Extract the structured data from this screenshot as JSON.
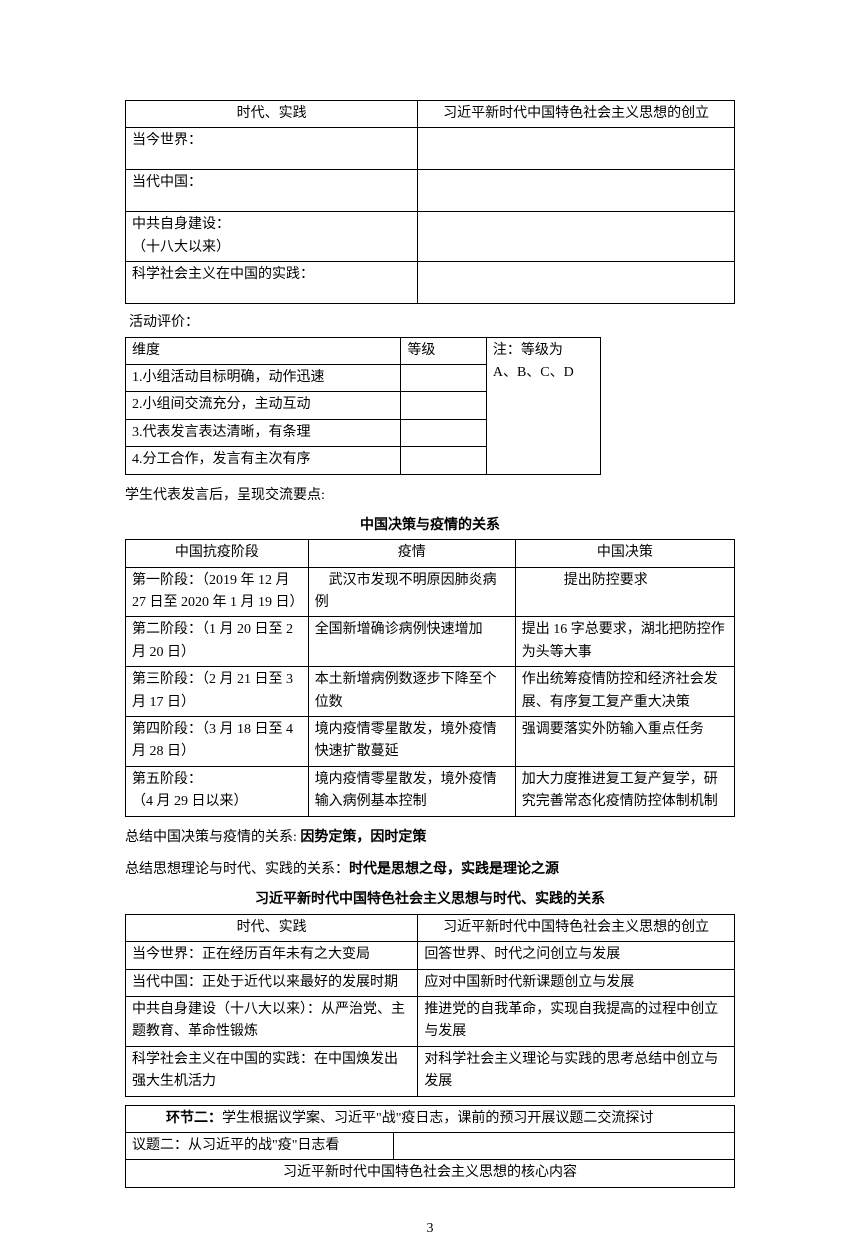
{
  "table1": {
    "header_left": "时代、实践",
    "header_right": "习近平新时代中国特色社会主义思想的创立",
    "rows": [
      {
        "left": "当今世界：",
        "right": ""
      },
      {
        "left": "当代中国：",
        "right": ""
      },
      {
        "left": "中共自身建设：\n（十八大以来）",
        "right": ""
      },
      {
        "left": "科学社会主义在中国的实践：",
        "right": ""
      }
    ]
  },
  "eval_label": "活动评价：",
  "table2": {
    "col_dim": "维度",
    "col_level": "等级",
    "note": "注：等级为\nA、B、C、D",
    "items": [
      "1.小组活动目标明确，动作迅速",
      "2.小组间交流充分，主动互动",
      "3.代表发言表达清晰，有条理",
      "4.分工合作，发言有主次有序"
    ]
  },
  "speak_line": "学生代表发言后，呈现交流要点:",
  "title_relation": "中国决策与疫情的关系",
  "table3": {
    "h1": "中国抗疫阶段",
    "h2": "疫情",
    "h3": "中国决策",
    "rows": [
      {
        "c1": "第一阶段：（2019 年 12 月27 日至 2020 年 1 月 19 日）",
        "c2": "　武汉市发现不明原因肺炎病例",
        "c3": "　　　提出防控要求"
      },
      {
        "c1": "第二阶段：（1 月 20 日至 2 月 20 日）",
        "c2": "全国新增确诊病例快速增加",
        "c3": "提出 16 字总要求，湖北把防控作为头等大事"
      },
      {
        "c1": "第三阶段：（2 月 21 日至 3 月 17 日）",
        "c2": "本土新增病例数逐步下降至个位数",
        "c3": "作出统筹疫情防控和经济社会发展、有序复工复产重大决策"
      },
      {
        "c1": "第四阶段：（3 月 18 日至 4 月 28 日）",
        "c2": "境内疫情零星散发，境外疫情快速扩散蔓延",
        "c3": "强调要落实外防输入重点任务"
      },
      {
        "c1": "第五阶段：\n（4 月 29 日以来）",
        "c2": "境内疫情零星散发，境外疫情输入病例基本控制",
        "c3": "加大力度推进复工复产复学，研究完善常态化疫情防控体制机制"
      }
    ]
  },
  "summary1_pre": "总结中国决策与疫情的关系: ",
  "summary1_bold": "因势定策，因时定策",
  "summary2_pre": "总结思想理论与时代、实践的关系：",
  "summary2_bold": "时代是思想之母，实践是理论之源",
  "title_xi": "习近平新时代中国特色社会主义思想与时代、实践的关系",
  "table4": {
    "header_left": "时代、实践",
    "header_right": "习近平新时代中国特色社会主义思想的创立",
    "rows": [
      {
        "l": "当今世界：正在经历百年未有之大变局",
        "r": "回答世界、时代之问创立与发展"
      },
      {
        "l": "当代中国：正处于近代以来最好的发展时期",
        "r": "应对中国新时代新课题创立与发展"
      },
      {
        "l": "中共自身建设（十八大以来）：从严治党、主题教育、革命性锻炼",
        "r": "推进党的自我革命，实现自我提高的过程中创立与发展"
      },
      {
        "l": "科学社会主义在中国的实践：在中国焕发出强大生机活力",
        "r": "对科学社会主义理论与实践的思考总结中创立与发展"
      }
    ]
  },
  "section2_line": "学生根据议学案、习近平\"战\"疫日志，课前的预习开展议题二交流探讨",
  "section2_bold": "环节二：",
  "topic2_line1": "议题二：从习近平的战\"疫\"日志看",
  "topic2_line2": "习近平新时代中国特色社会主义思想的核心内容",
  "page_number": "3"
}
